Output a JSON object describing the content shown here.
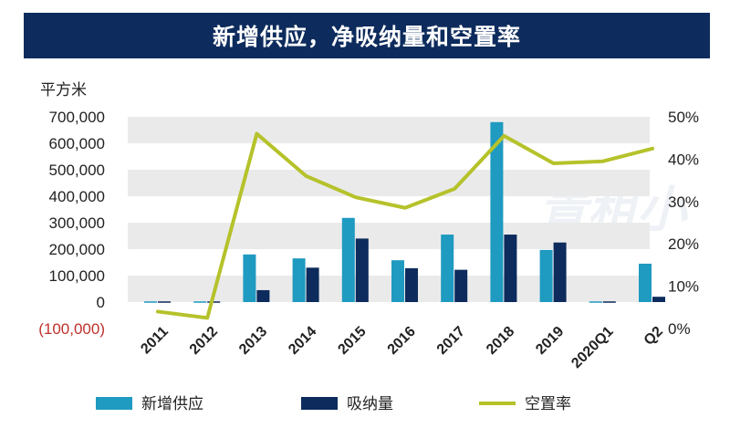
{
  "chart_data": {
    "type": "bar+line",
    "title": "新增供应，净吸纳量和空置率",
    "left_axis_unit": "平方米",
    "categories": [
      "2011",
      "2012",
      "2013",
      "2014",
      "2015",
      "2016",
      "2017",
      "2018",
      "2019",
      "2020Q1",
      "Q2"
    ],
    "left_axis": {
      "min": -100000,
      "max": 700000,
      "ticks": [
        -100000,
        0,
        100000,
        200000,
        300000,
        400000,
        500000,
        600000,
        700000
      ],
      "tick_labels": [
        "(100,000)",
        "0",
        "100,000",
        "200,000",
        "300,000",
        "400,000",
        "500,000",
        "600,000",
        "700,000"
      ]
    },
    "right_axis": {
      "min": 0,
      "max": 50,
      "ticks": [
        0,
        10,
        20,
        30,
        40,
        50
      ],
      "tick_labels": [
        "0%",
        "10%",
        "20%",
        "30%",
        "40%",
        "50%"
      ]
    },
    "series": [
      {
        "name": "新增供应",
        "type": "bar",
        "axis": "left",
        "color": "#1f9ac0",
        "values": [
          5000,
          3000,
          180000,
          165000,
          318000,
          158000,
          255000,
          680000,
          197000,
          0,
          145000
        ]
      },
      {
        "name": "吸纳量",
        "type": "bar",
        "axis": "left",
        "color": "#0d2b5c",
        "values": [
          0,
          0,
          45000,
          130000,
          240000,
          128000,
          122000,
          255000,
          225000,
          -5000,
          20000
        ]
      },
      {
        "name": "空置率",
        "type": "line",
        "axis": "right",
        "color": "#b5c22a",
        "values": [
          4,
          2.5,
          46,
          36,
          31,
          28.5,
          33,
          45.5,
          39,
          39.5,
          42.5
        ]
      }
    ],
    "legend_position": "bottom",
    "grid": "horizontal-bands"
  },
  "watermark": "青租小"
}
